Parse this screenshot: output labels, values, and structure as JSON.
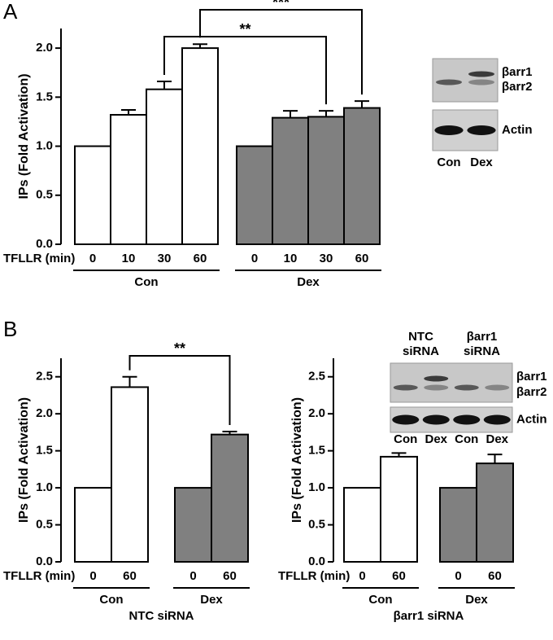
{
  "panel_labels": [
    "A",
    "B"
  ],
  "chart_data": [
    {
      "type": "bar",
      "ylabel": "IPs (Fold Activation)",
      "xlabel": "TFLLR (min)",
      "categories": [
        "0",
        "10",
        "30",
        "60"
      ],
      "series": [
        {
          "name": "Con",
          "color": "#ffffff",
          "values": [
            1.0,
            1.32,
            1.58,
            2.0
          ],
          "errors": [
            null,
            0.05,
            0.08,
            0.04
          ]
        },
        {
          "name": "Dex",
          "color": "#808080",
          "values": [
            1.0,
            1.29,
            1.3,
            1.39
          ],
          "errors": [
            null,
            0.07,
            0.06,
            0.07
          ]
        }
      ],
      "annotations": [
        "**",
        "***"
      ],
      "ylim": [
        0,
        2.2
      ],
      "yticks": [
        {
          "value": 0,
          "label": "0.0"
        },
        0.5,
        {
          "value": 1,
          "label": "1.0"
        },
        1.5,
        {
          "value": 2,
          "label": "2.0"
        }
      ]
    },
    {
      "type": "bar",
      "ylabel": "IPs (Fold Activation)",
      "xlabel": "TFLLR (min)",
      "subtitle": "NTC siRNA",
      "categories": [
        "0",
        "60"
      ],
      "series": [
        {
          "name": "Con",
          "color": "#ffffff",
          "values": [
            1.0,
            2.36
          ],
          "errors": [
            null,
            0.14
          ]
        },
        {
          "name": "Dex",
          "color": "#808080",
          "values": [
            1.0,
            1.72
          ],
          "errors": [
            null,
            0.04
          ]
        }
      ],
      "annotations": [
        "**"
      ],
      "ylim": [
        0,
        2.75
      ],
      "yticks": [
        {
          "value": 0,
          "label": "0.0"
        },
        0.5,
        {
          "value": 1,
          "label": "1.0"
        },
        1.5,
        {
          "value": 2,
          "label": "2.0"
        },
        2.5
      ]
    },
    {
      "type": "bar",
      "ylabel": "IPs (Fold Activation)",
      "xlabel": "TFLLR (min)",
      "subtitle": "βarr1 siRNA",
      "categories": [
        "0",
        "60"
      ],
      "series": [
        {
          "name": "Con",
          "color": "#ffffff",
          "values": [
            1.0,
            1.42
          ],
          "errors": [
            null,
            0.05
          ]
        },
        {
          "name": "Dex",
          "color": "#808080",
          "values": [
            1.0,
            1.33
          ],
          "errors": [
            null,
            0.12
          ]
        }
      ],
      "ylim": [
        0,
        2.75
      ],
      "yticks": [
        {
          "value": 0,
          "label": "0.0"
        },
        0.5,
        {
          "value": 1,
          "label": "1.0"
        },
        1.5,
        {
          "value": 2,
          "label": "2.0"
        },
        2.5
      ]
    }
  ],
  "blots": [
    {
      "bands": [
        "βarr1",
        "βarr2"
      ],
      "control": "Actin",
      "lanes": [
        "Con",
        "Dex"
      ]
    },
    {
      "headers": [
        [
          "NTC",
          "siRNA"
        ],
        [
          "βarr1",
          "siRNA"
        ]
      ],
      "bands": [
        "βarr1",
        "βarr2"
      ],
      "control": "Actin",
      "lanes": [
        "Con",
        "Dex",
        "Con",
        "Dex"
      ]
    }
  ]
}
